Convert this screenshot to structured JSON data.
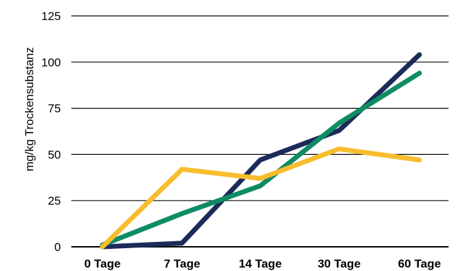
{
  "chart_data": {
    "type": "line",
    "categories": [
      "0 Tage",
      "7 Tage",
      "14 Tage",
      "30 Tage",
      "60 Tage"
    ],
    "ylabel": "mg/kg Trockensubstanz",
    "ylim": [
      0,
      125
    ],
    "yticks": [
      0,
      25,
      50,
      75,
      100,
      125
    ],
    "grid": true,
    "legend": "none",
    "series": [
      {
        "color": "#1c2b5a",
        "values": [
          0,
          2,
          47,
          63,
          104
        ]
      },
      {
        "color": "#0e8c64",
        "values": [
          1,
          18,
          33,
          67,
          94
        ]
      },
      {
        "color": "#f7bd2c",
        "values": [
          0,
          42,
          37,
          53,
          47
        ]
      }
    ]
  }
}
